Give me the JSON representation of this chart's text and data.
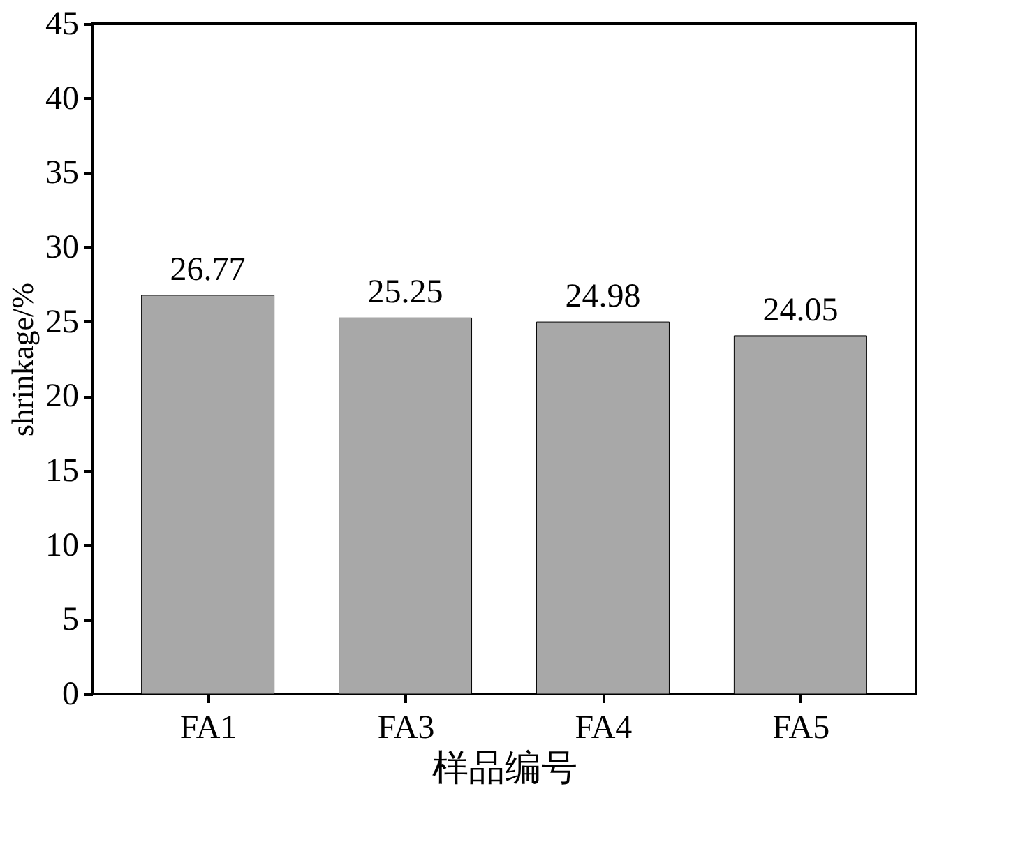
{
  "chart_data": {
    "type": "bar",
    "xlabel": "样品编号",
    "ylabel": "shrinkage/%",
    "categories": [
      "FA1",
      "FA3",
      "FA4",
      "FA5"
    ],
    "values": [
      26.77,
      25.25,
      24.98,
      24.05
    ],
    "color": "#a8a8a8",
    "ylim": [
      0,
      45
    ],
    "yticks": [
      0,
      5,
      10,
      15,
      20,
      25,
      30,
      35,
      40,
      45
    ],
    "data_labels": true,
    "grid": false
  }
}
